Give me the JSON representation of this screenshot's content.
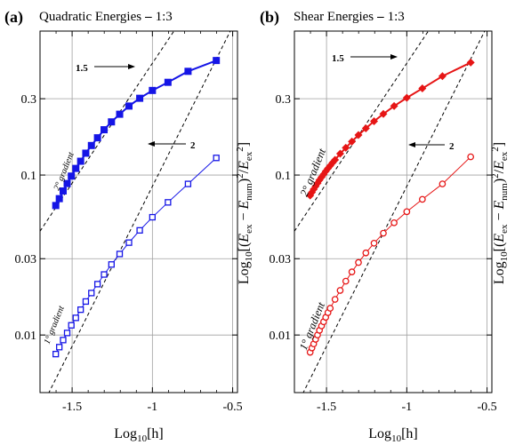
{
  "colors": {
    "blue": "#1515e6",
    "red": "#e61515",
    "grid": "#a0a0a0",
    "guide": "#000000"
  },
  "chart_data": [
    {
      "type": "line",
      "panel_label": "(a)",
      "title": "Quadratic Energies",
      "title_suffix": "1:3",
      "xlabel": "Log10[h]",
      "xlabel_main": "Log",
      "xlabel_sub": "10",
      "xlabel_tail": "[h]",
      "ylabel": "",
      "xlim": [
        -1.7,
        -0.47
      ],
      "ylim": [
        -2.36,
        -0.1
      ],
      "y_scale": "log10",
      "grid": true,
      "xticks": [
        -1.5,
        -1,
        -0.5
      ],
      "xtick_labels": [
        "-1.5",
        "-1",
        "-0.5"
      ],
      "yticks": [
        0.01,
        0.03,
        0.1,
        0.3
      ],
      "ytick_labels": [
        "0.01",
        "0.03",
        "0.1",
        "0.3"
      ],
      "series": [
        {
          "marker": "square-filled",
          "color": "#1515e6",
          "x": [
            -1.602,
            -1.58,
            -1.556,
            -1.531,
            -1.505,
            -1.477,
            -1.447,
            -1.415,
            -1.38,
            -1.342,
            -1.301,
            -1.255,
            -1.204,
            -1.146,
            -1.079,
            -1.0,
            -0.903,
            -0.778,
            -0.602
          ],
          "y": [
            0.0645,
            0.0712,
            0.0795,
            0.0885,
            0.0985,
            0.11,
            0.122,
            0.137,
            0.153,
            0.171,
            0.192,
            0.215,
            0.24,
            0.27,
            0.302,
            0.338,
            0.38,
            0.445,
            0.52
          ]
        },
        {
          "marker": "square-open",
          "color": "#1515e6",
          "x": [
            -1.602,
            -1.58,
            -1.556,
            -1.531,
            -1.505,
            -1.477,
            -1.447,
            -1.415,
            -1.38,
            -1.342,
            -1.301,
            -1.255,
            -1.204,
            -1.146,
            -1.079,
            -1.0,
            -0.903,
            -0.778,
            -0.602
          ],
          "y": [
            0.0076,
            0.0084,
            0.0093,
            0.0103,
            0.0115,
            0.0128,
            0.0144,
            0.0162,
            0.0183,
            0.0208,
            0.0239,
            0.0276,
            0.0321,
            0.0378,
            0.0451,
            0.0545,
            0.0675,
            0.088,
            0.128
          ]
        }
      ],
      "guide_lines": [
        {
          "label": "1.5",
          "slope": 1.5,
          "through": [
            -1.0,
            0.5
          ]
        },
        {
          "label": "2",
          "slope": 2,
          "through": [
            -1.0,
            0.085
          ]
        }
      ],
      "annotations": [
        "1.5",
        "2"
      ],
      "gradient_labels": [
        "2° gradient",
        "1° gradient"
      ]
    },
    {
      "type": "line",
      "panel_label": "(b)",
      "title": "Shear Energies",
      "title_suffix": "1:3",
      "xlabel": "Log10[h]",
      "xlabel_main": "Log",
      "xlabel_sub": "10",
      "xlabel_tail": "[h]",
      "ylabel": "Log10[(Eex - Enum)^2/Eex^2]",
      "ylabel_parts": [
        "Log",
        "10",
        "[(",
        "E",
        "ex",
        " − ",
        "E",
        "num",
        ")",
        "2",
        "/",
        "E",
        "ex",
        "2",
        "]"
      ],
      "xlim": [
        -1.7,
        -0.47
      ],
      "ylim": [
        -2.36,
        -0.1
      ],
      "y_scale": "log10",
      "grid": true,
      "xticks": [
        -1.5,
        -1,
        -0.5
      ],
      "xtick_labels": [
        "-1.5",
        "-1",
        "-0.5"
      ],
      "yticks": [
        0.01,
        0.03,
        0.1,
        0.3
      ],
      "ytick_labels": [
        "0.01",
        "0.03",
        "0.1",
        "0.3"
      ],
      "series": [
        {
          "marker": "diamond-filled",
          "color": "#e61515",
          "x": [
            -1.602,
            -1.591,
            -1.58,
            -1.568,
            -1.556,
            -1.544,
            -1.531,
            -1.518,
            -1.505,
            -1.491,
            -1.477,
            -1.462,
            -1.447,
            -1.415,
            -1.38,
            -1.342,
            -1.301,
            -1.255,
            -1.204,
            -1.146,
            -1.079,
            -1.0,
            -0.903,
            -0.778,
            -0.602
          ],
          "y": [
            0.0745,
            0.078,
            0.0815,
            0.085,
            0.089,
            0.093,
            0.097,
            0.101,
            0.1055,
            0.11,
            0.1145,
            0.1195,
            0.1245,
            0.136,
            0.148,
            0.162,
            0.178,
            0.196,
            0.217,
            0.241,
            0.27,
            0.304,
            0.348,
            0.415,
            0.505
          ]
        },
        {
          "marker": "circle-open",
          "color": "#e61515",
          "x": [
            -1.602,
            -1.591,
            -1.58,
            -1.568,
            -1.556,
            -1.544,
            -1.531,
            -1.518,
            -1.505,
            -1.491,
            -1.477,
            -1.447,
            -1.415,
            -1.38,
            -1.342,
            -1.301,
            -1.255,
            -1.204,
            -1.146,
            -1.079,
            -1.0,
            -0.903,
            -0.778,
            -0.602
          ],
          "y": [
            0.0078,
            0.0083,
            0.0088,
            0.0094,
            0.01,
            0.0107,
            0.0114,
            0.0121,
            0.0129,
            0.0138,
            0.0147,
            0.0167,
            0.019,
            0.0217,
            0.0248,
            0.0284,
            0.0326,
            0.0375,
            0.0433,
            0.0503,
            0.059,
            0.0705,
            0.088,
            0.13
          ]
        }
      ],
      "guide_lines": [
        {
          "label": "1.5",
          "slope": 1.5,
          "through": [
            -1.0,
            0.5
          ]
        },
        {
          "label": "2",
          "slope": 2,
          "through": [
            -1.0,
            0.085
          ]
        }
      ],
      "annotations": [
        "1.5",
        "2"
      ],
      "gradient_labels": [
        "2° gradient",
        "1° gradient"
      ]
    }
  ]
}
